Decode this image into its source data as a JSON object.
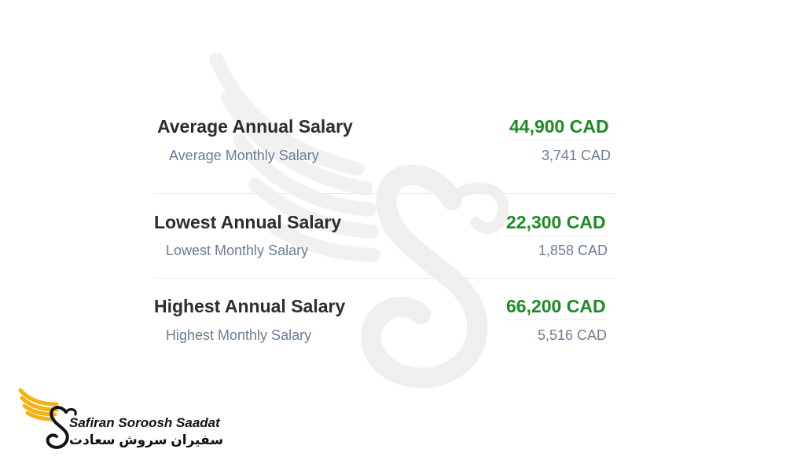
{
  "colors": {
    "accent_green": "#1f8a24",
    "label_dark": "#2d2d2d",
    "label_muted": "#6b7d93",
    "logo_gold": "#f2b313"
  },
  "salaries": [
    {
      "annual_label": "Average Annual Salary",
      "annual_value": "44,900 CAD",
      "monthly_label": "Average Monthly Salary",
      "monthly_value": "3,741 CAD"
    },
    {
      "annual_label": "Lowest Annual Salary",
      "annual_value": "22,300 CAD",
      "monthly_label": "Lowest Monthly Salary",
      "monthly_value": "1,858 CAD"
    },
    {
      "annual_label": "Highest Annual Salary",
      "annual_value": "66,200 CAD",
      "monthly_label": "Highest Monthly Salary",
      "monthly_value": "5,516 CAD"
    }
  ],
  "logo": {
    "name_en": "Safiran Soroosh Saadat",
    "name_fa": "سفیران سروش سعادت",
    "icon": "swan-wing-icon"
  },
  "watermark": {
    "icon": "swan-wing-watermark-icon"
  }
}
